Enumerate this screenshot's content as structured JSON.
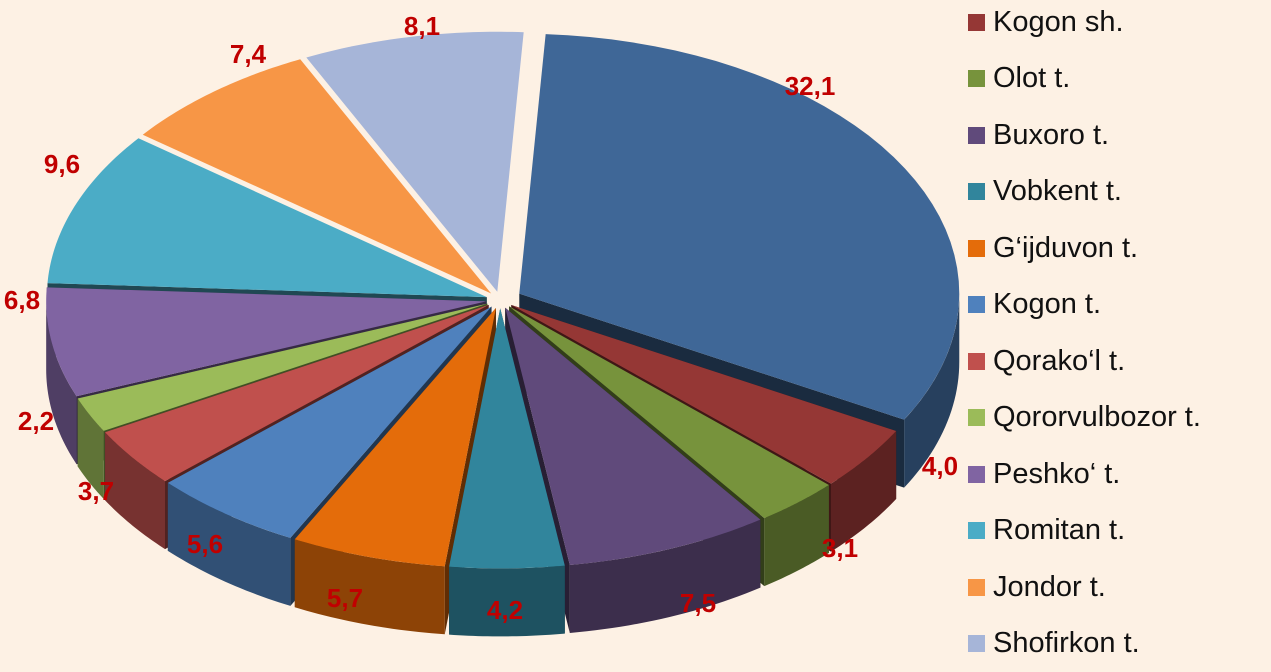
{
  "chart_data": {
    "type": "pie",
    "title": "",
    "legend_position": "right",
    "label_color": "#c00000",
    "slices": [
      {
        "name": "Kogon sh.",
        "value": 4.0,
        "label": "4,0",
        "color": "#953735"
      },
      {
        "name": "Olot t.",
        "value": 3.1,
        "label": "3,1",
        "color": "#77933c"
      },
      {
        "name": "Buxoro t.",
        "value": 7.5,
        "label": "7,5",
        "color": "#604a7b"
      },
      {
        "name": "Vobkent t.",
        "value": 4.2,
        "label": "4,2",
        "color": "#31859c"
      },
      {
        "name": "G‘ijduvon t.",
        "value": 5.7,
        "label": "5,7",
        "color": "#e46c0a"
      },
      {
        "name": "Kogon t.",
        "value": 5.6,
        "label": "5,6",
        "color": "#4f81bd"
      },
      {
        "name": "Qorako‘l t.",
        "value": 3.7,
        "label": "3,7",
        "color": "#c0504d"
      },
      {
        "name": "Qororvulbozor t.",
        "value": 2.2,
        "label": "2,2",
        "color": "#9bbb59"
      },
      {
        "name": "Peshko‘ t.",
        "value": 6.8,
        "label": "6,8",
        "color": "#8064a2"
      },
      {
        "name": "Romitan t.",
        "value": 9.6,
        "label": "9,6",
        "color": "#4bacc6"
      },
      {
        "name": "Jondor t.",
        "value": 7.4,
        "label": "7,4",
        "color": "#f79646"
      },
      {
        "name": "Shofirkon t.",
        "value": 8.1,
        "label": "8,1",
        "color": "#a6b5d8"
      }
    ],
    "legend_extra_entries_offscreen": "",
    "featured_slice": {
      "name": "",
      "value": 32.1,
      "label": "32,1",
      "color": "#3f6797"
    }
  }
}
